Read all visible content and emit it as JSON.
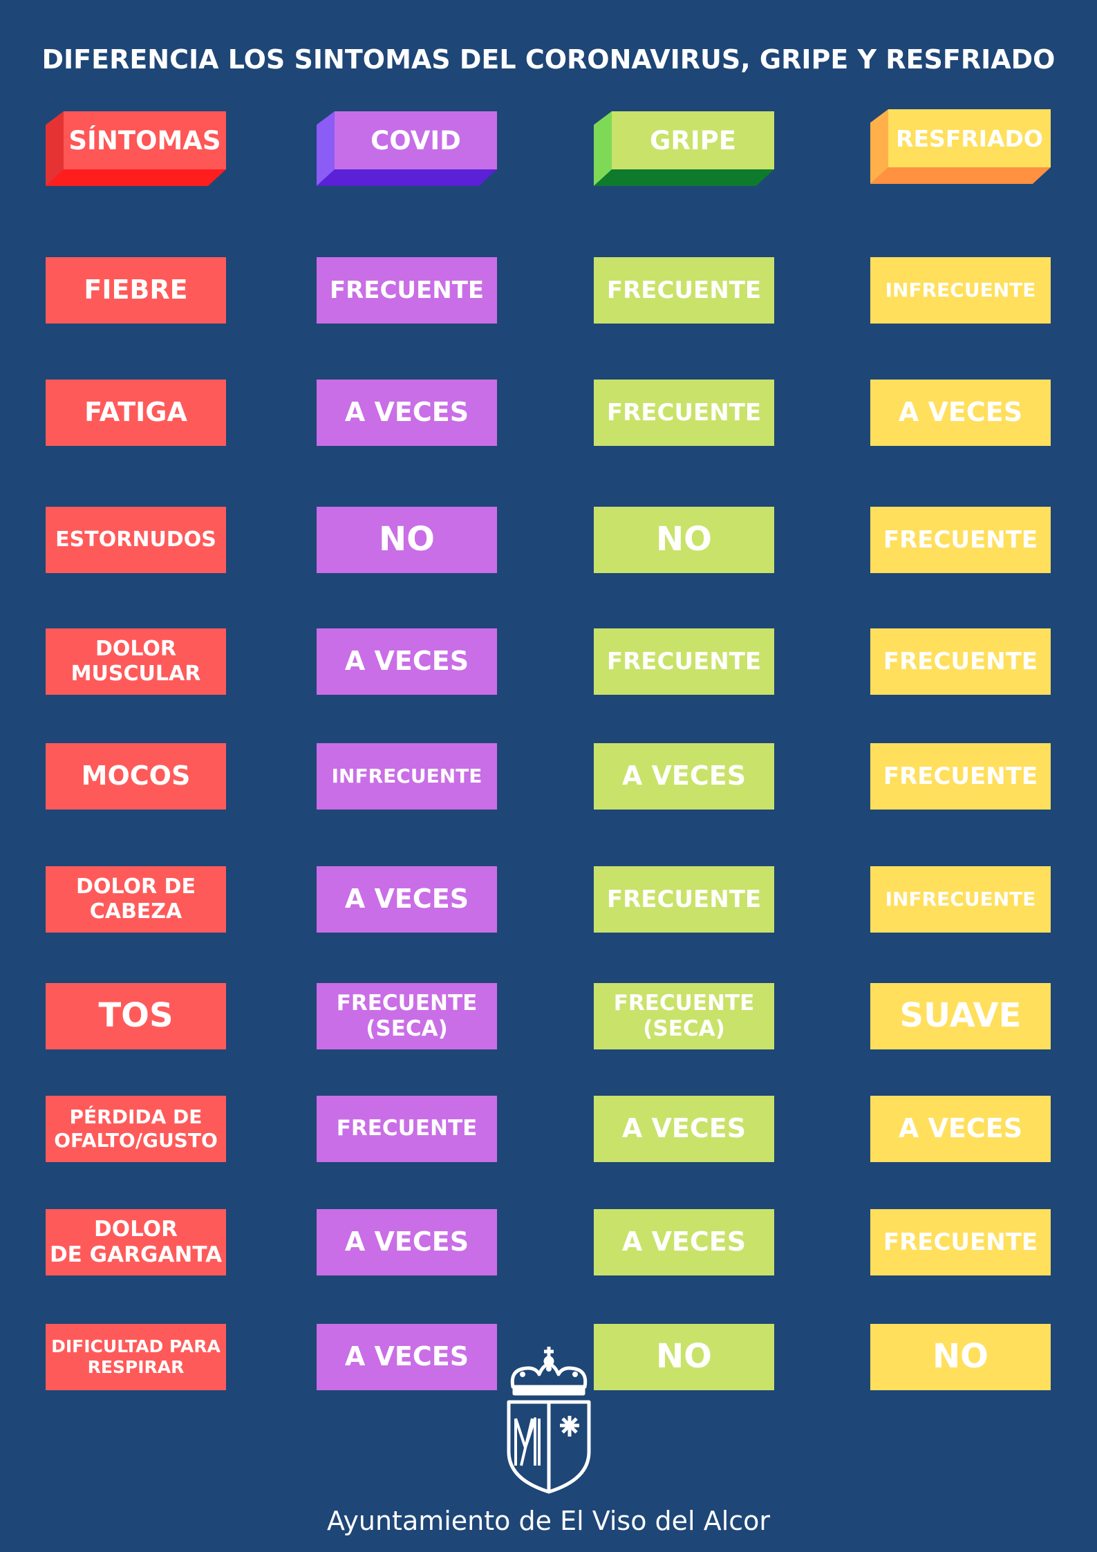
{
  "title": "DIFERENCIA LOS SINTOMAS DEL CORONAVIRUS, GRIPE Y RESFRIADO",
  "headers": [
    "SÍNTOMAS",
    "COVID",
    "GRIPE",
    "RESFRIADO"
  ],
  "colors": {
    "background": "#1e4677",
    "sintomas": "#ff5a5a",
    "covid": "#c96ee6",
    "gripe": "#c9e26a",
    "resfriado": "#ffdf5c"
  },
  "rows": [
    {
      "symptom": "FIEBRE",
      "covid": "FRECUENTE",
      "gripe": "FRECUENTE",
      "resfriado": "INFRECUENTE"
    },
    {
      "symptom": "FATIGA",
      "covid": "A VECES",
      "gripe": "FRECUENTE",
      "resfriado": "A VECES"
    },
    {
      "symptom": "ESTORNUDOS",
      "covid": "NO",
      "gripe": "NO",
      "resfriado": "FRECUENTE"
    },
    {
      "symptom": "DOLOR\nMUSCULAR",
      "covid": "A VECES",
      "gripe": "FRECUENTE",
      "resfriado": "FRECUENTE"
    },
    {
      "symptom": "MOCOS",
      "covid": "INFRECUENTE",
      "gripe": "A VECES",
      "resfriado": "FRECUENTE"
    },
    {
      "symptom": "DOLOR DE\nCABEZA",
      "covid": "A VECES",
      "gripe": "FRECUENTE",
      "resfriado": "INFRECUENTE"
    },
    {
      "symptom": "TOS",
      "covid": "FRECUENTE\n(SECA)",
      "gripe": "FRECUENTE\n(SECA)",
      "resfriado": "SUAVE"
    },
    {
      "symptom": "PÉRDIDA DE\nOFALTO/GUSTO",
      "covid": "FRECUENTE",
      "gripe": "A VECES",
      "resfriado": "A VECES"
    },
    {
      "symptom": "DOLOR\nDE GARGANTA",
      "covid": "A VECES",
      "gripe": "A VECES",
      "resfriado": "FRECUENTE"
    },
    {
      "symptom": "DIFICULTAD PARA\nRESPIRAR",
      "covid": "A VECES",
      "gripe": "NO",
      "resfriado": "NO"
    }
  ],
  "footer": "Ayuntamiento de El Viso del Alcor",
  "logo_icon": "coat-of-arms-icon"
}
